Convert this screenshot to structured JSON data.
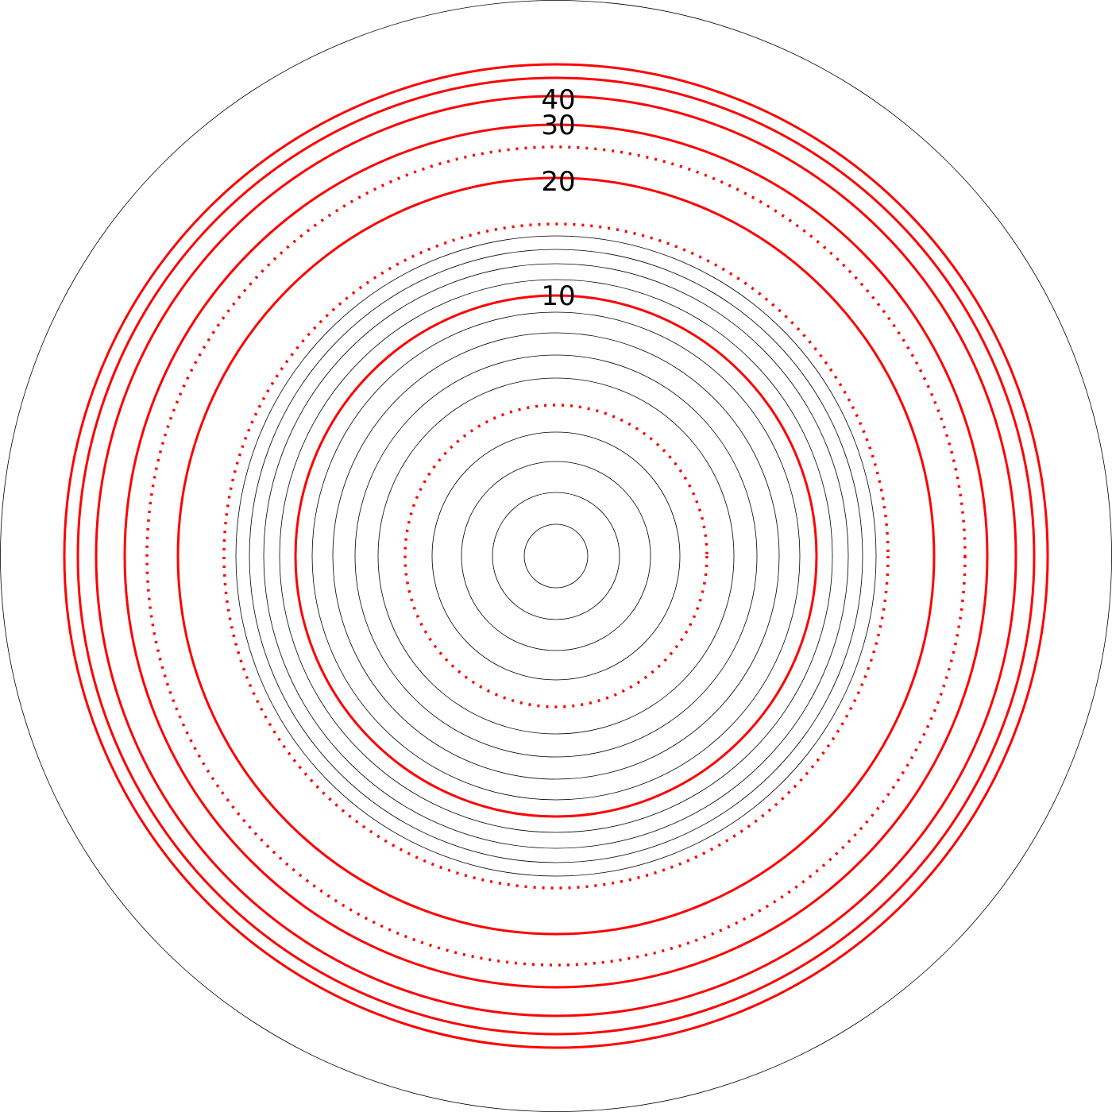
{
  "colors": {
    "contour": "#ff0000",
    "ring": "#000000",
    "background": "#ffffff"
  },
  "labels": [
    {
      "text": "40"
    },
    {
      "text": "30"
    },
    {
      "text": "20"
    },
    {
      "text": "10"
    }
  ],
  "line_styles": {
    "solid_red": "solid",
    "dotted_red": "dotted",
    "thin_black": "solid"
  }
}
